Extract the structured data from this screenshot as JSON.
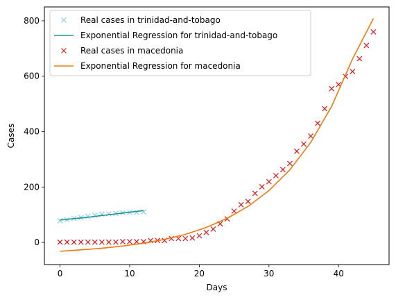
{
  "chart_data": {
    "type": "scatter",
    "xlabel": "Days",
    "ylabel": "Cases",
    "xlim": [
      -2.25,
      47.25
    ],
    "ylim": [
      -80,
      850
    ],
    "xticks": [
      0,
      10,
      20,
      30,
      40
    ],
    "yticks": [
      0,
      200,
      400,
      600,
      800
    ],
    "grid": false,
    "legend_position": "top-left",
    "series": [
      {
        "name": "Real cases in trinidad-and-tobago",
        "kind": "points",
        "marker": "x",
        "color": "#8fcbe9",
        "x": [
          0,
          1,
          2,
          3,
          4,
          5,
          6,
          7,
          8,
          9,
          10,
          11,
          12
        ],
        "y": [
          78,
          82,
          87,
          90,
          94,
          98,
          102,
          103,
          105,
          107,
          108,
          108,
          110
        ]
      },
      {
        "name": "Exponential Regression for trinidad-and-tobago",
        "kind": "line",
        "color": "#17959a",
        "x": [
          0,
          1,
          2,
          3,
          4,
          5,
          6,
          7,
          8,
          9,
          10,
          11,
          12
        ],
        "y": [
          81,
          83.5,
          86,
          88.5,
          91,
          94,
          97,
          100,
          103,
          106,
          109,
          112,
          115
        ]
      },
      {
        "name": "Real cases in macedonia",
        "kind": "points",
        "marker": "x",
        "color": "#d7191c",
        "x": [
          0,
          1,
          2,
          3,
          4,
          5,
          6,
          7,
          8,
          9,
          10,
          11,
          12,
          13,
          14,
          15,
          16,
          17,
          18,
          19,
          20,
          21,
          22,
          23,
          24,
          25,
          26,
          27,
          28,
          29,
          30,
          31,
          32,
          33,
          34,
          35,
          36,
          37,
          38,
          39,
          40,
          41,
          42,
          43,
          44,
          45
        ],
        "y": [
          1,
          1,
          1,
          1,
          1,
          1,
          1,
          1,
          1,
          3,
          3,
          3,
          3,
          7,
          7,
          7,
          14,
          14,
          14,
          16,
          24,
          36,
          48,
          67,
          85,
          113,
          136,
          148,
          177,
          201,
          219,
          241,
          263,
          285,
          329,
          355,
          384,
          430,
          483,
          555,
          570,
          599,
          617,
          663,
          711,
          760
        ]
      },
      {
        "name": "Exponential Regression for macedonia",
        "kind": "line",
        "color": "#f07a10",
        "x": [
          0,
          3,
          6,
          9,
          12,
          15,
          18,
          21,
          24,
          27,
          30,
          33,
          36,
          39,
          42,
          45
        ],
        "y": [
          -32,
          -27,
          -21,
          -13,
          -3,
          11,
          29,
          54,
          87,
          130,
          187,
          262,
          361,
          491,
          662,
          808
        ]
      }
    ]
  }
}
